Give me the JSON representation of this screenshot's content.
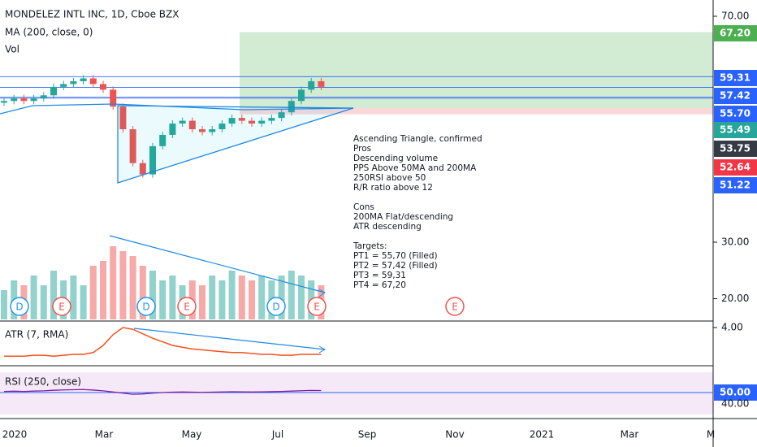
{
  "header": {
    "title": "MONDELEZ INTL INC, 1D, Cboe BZX",
    "ma": "MA (200, close, 0)",
    "vol": "Vol"
  },
  "price_axis": {
    "ticks": [
      {
        "value": 70,
        "label": "70.00"
      },
      {
        "value": 30,
        "label": "30.00"
      },
      {
        "value": 20,
        "label": "20.00"
      }
    ]
  },
  "price_tags": [
    {
      "value": 67.2,
      "label": "67.20",
      "color": "#4caf50"
    },
    {
      "value": 59.31,
      "label": "59.31",
      "color": "#2962ff"
    },
    {
      "value": 57.42,
      "label": "57.42",
      "color": "#2962ff"
    },
    {
      "value": 55.7,
      "label": "55.70",
      "color": "#2962ff"
    },
    {
      "value": 55.49,
      "label": "55.49",
      "color": "#26a69a"
    },
    {
      "value": 53.75,
      "label": "53.75",
      "color": "#363a45"
    },
    {
      "value": 52.64,
      "label": "52.64",
      "color": "#f23645"
    },
    {
      "value": 51.22,
      "label": "51.22",
      "color": "#2962ff"
    }
  ],
  "closes": [
    55,
    55.5,
    55,
    55.5,
    56,
    57.5,
    58,
    58.5,
    59,
    58,
    57,
    54,
    50,
    44,
    42,
    47,
    49,
    51,
    51.5,
    50,
    49.5,
    50,
    51,
    52,
    51.5,
    51,
    51.5,
    52,
    53,
    55,
    57,
    58.5,
    57.5
  ],
  "volume": [
    6,
    8,
    7,
    9,
    7,
    10,
    8,
    9,
    7,
    11,
    12,
    15,
    14,
    13,
    11,
    10,
    8,
    9,
    7,
    8,
    7,
    9,
    8,
    10,
    9,
    8,
    9,
    8,
    9,
    10,
    9,
    8,
    7
  ],
  "annotation": [
    "Ascending Triangle, confirmed",
    "Pros",
    "Descending volume",
    "PPS Above 50MA and 200MA",
    "250RSI above 50",
    "R/R ratio above 12",
    "",
    "Cons",
    "200MA Flat/descending",
    "ATR descending",
    "",
    "Targets:",
    "PT1 = 55,70 (Filled)",
    "PT2 = 57,42 (Filled)",
    "PT3 = 59,31",
    "PT4 = 67,20"
  ],
  "events": [
    "D",
    "E",
    "D",
    "E",
    "D",
    "E",
    "E"
  ],
  "atr": {
    "label": "ATR (7, RMA)",
    "tick": {
      "value": 4,
      "label": "4.00"
    },
    "values": [
      0.8,
      0.8,
      0.8,
      0.9,
      0.9,
      0.8,
      0.9,
      1.0,
      1.0,
      1.2,
      2.0,
      3.2,
      4.0,
      3.8,
      3.3,
      2.8,
      2.4,
      2.0,
      1.8,
      1.6,
      1.5,
      1.4,
      1.3,
      1.2,
      1.2,
      1.1,
      1.0,
      1.0,
      0.9,
      0.9,
      1.0,
      1.0,
      1.0
    ]
  },
  "rsi": {
    "label": "RSI (250, close)",
    "ticks": [
      {
        "value": 50,
        "label": "50.00"
      },
      {
        "value": 40,
        "label": "40.00"
      }
    ],
    "values": [
      51,
      51.2,
      51,
      51.3,
      51.5,
      52,
      52.3,
      52.5,
      52.7,
      52.2,
      51.5,
      50.5,
      49.5,
      48.5,
      48.8,
      49.5,
      50,
      50.3,
      50.5,
      50.3,
      50.2,
      50.3,
      50.5,
      50.7,
      50.6,
      50.5,
      50.6,
      50.8,
      51,
      51.3,
      51.6,
      51.9,
      51.8
    ]
  },
  "x_axis": [
    "2020",
    "Mar",
    "May",
    "Jul",
    "Sep",
    "Nov",
    "2021",
    "Mar",
    "M"
  ]
}
